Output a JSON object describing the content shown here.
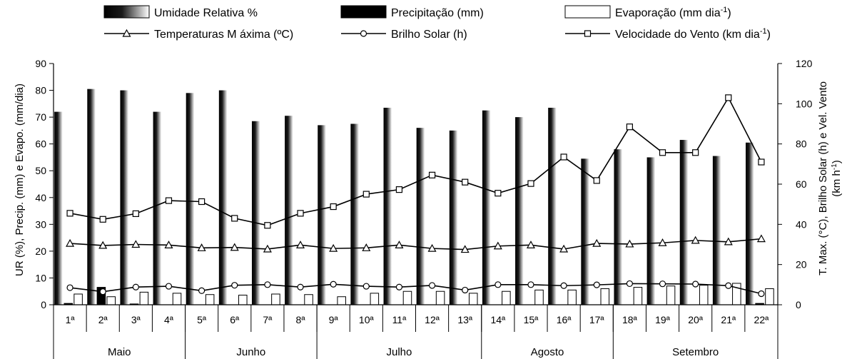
{
  "chart_data": {
    "type": "bar",
    "categories": [
      "1ª",
      "2ª",
      "3ª",
      "4ª",
      "5ª",
      "6ª",
      "7ª",
      "8ª",
      "9ª",
      "10ª",
      "11ª",
      "12ª",
      "13ª",
      "14ª",
      "15ª",
      "16ª",
      "17ª",
      "18ª",
      "19ª",
      "20ª",
      "21ª",
      "22ª"
    ],
    "groups": [
      {
        "label": "Maio",
        "count": 4
      },
      {
        "label": "Junho",
        "count": 4
      },
      {
        "label": "Julho",
        "count": 5
      },
      {
        "label": "Agosto",
        "count": 4
      },
      {
        "label": "Setembro",
        "count": 5
      }
    ],
    "left_axis": {
      "label": "UR (%), Precip. (mm) e Evapo. (mm/dia)",
      "ylim": [
        0,
        90
      ],
      "ticks": [
        "0",
        "10",
        "20",
        "30",
        "40",
        "50",
        "60",
        "70",
        "80",
        "90"
      ]
    },
    "right_axis": {
      "label_line1": "T. Max. (°C), Brilho Solar (h) e Vel. Vento",
      "label_line2": "(km h-1)",
      "ylim": [
        0,
        120
      ],
      "ticks": [
        "0",
        "20",
        "40",
        "60",
        "80",
        "100",
        "120"
      ]
    },
    "legend": {
      "placement": "top",
      "items": [
        {
          "key": "ur",
          "label": "Umidade Relativa %"
        },
        {
          "key": "precip",
          "label": "Precipitação (mm)"
        },
        {
          "key": "evap",
          "label": "Evaporação (mm dia-1)"
        },
        {
          "key": "tmax",
          "label": "Temperaturas M áxima (ºC)"
        },
        {
          "key": "sun",
          "label": "Brilho Solar (h)"
        },
        {
          "key": "wind",
          "label": "Velocidade do Vento (km dia-1)"
        }
      ]
    },
    "bar_series": [
      {
        "key": "ur",
        "name": "Umidade Relativa %",
        "axis": "left",
        "values": [
          72,
          80.5,
          80,
          72,
          79,
          80,
          68.5,
          70.5,
          67,
          67.5,
          73.5,
          66,
          65,
          72.5,
          70,
          73.5,
          54.5,
          58,
          55,
          61.5,
          55.5,
          60.5
        ]
      },
      {
        "key": "precip",
        "name": "Precipitação (mm)",
        "axis": "left",
        "values": [
          0.5,
          6.5,
          0.3,
          0,
          0,
          0,
          0,
          0,
          0,
          0,
          0,
          0,
          0,
          0,
          0,
          0,
          0,
          0,
          0,
          0,
          0,
          0.5
        ]
      },
      {
        "key": "evap",
        "name": "Evaporação (mm dia-1)",
        "axis": "left",
        "values": [
          4,
          3,
          4.7,
          4.3,
          3.8,
          3.6,
          4,
          3.8,
          3,
          4.3,
          5,
          5,
          4.3,
          5,
          5.5,
          5.5,
          6,
          6.5,
          7,
          7.3,
          8,
          6
        ]
      }
    ],
    "line_series": [
      {
        "key": "tmax",
        "name": "Temperaturas M áxima (ºC)",
        "axis": "right",
        "marker": "triangle",
        "values": [
          30.5,
          29.5,
          30,
          29.7,
          28.3,
          28.5,
          27.7,
          29.7,
          28,
          28.3,
          29.7,
          28,
          27.5,
          29.2,
          29.7,
          27.7,
          30.5,
          30.2,
          30.8,
          32,
          31.3,
          32.8
        ]
      },
      {
        "key": "sun",
        "name": "Brilho Solar (h)",
        "axis": "right",
        "marker": "circle",
        "values": [
          8.5,
          6.5,
          8.8,
          9.2,
          7,
          9.7,
          10,
          8.8,
          10.2,
          9.2,
          8.8,
          9.6,
          7.3,
          10,
          10,
          9.5,
          9.9,
          10.5,
          10.4,
          10.3,
          9.5,
          5.5
        ]
      },
      {
        "key": "wind",
        "name": "Velocidade do Vento (km dia-1)",
        "axis": "right",
        "marker": "square",
        "values": [
          45.5,
          42.5,
          45.3,
          51.8,
          51.3,
          43,
          39.5,
          45.5,
          48.8,
          55,
          57.3,
          64.5,
          61,
          55.5,
          60.3,
          73.5,
          61.8,
          88.5,
          75.7,
          75.7,
          103,
          71
        ]
      }
    ]
  }
}
